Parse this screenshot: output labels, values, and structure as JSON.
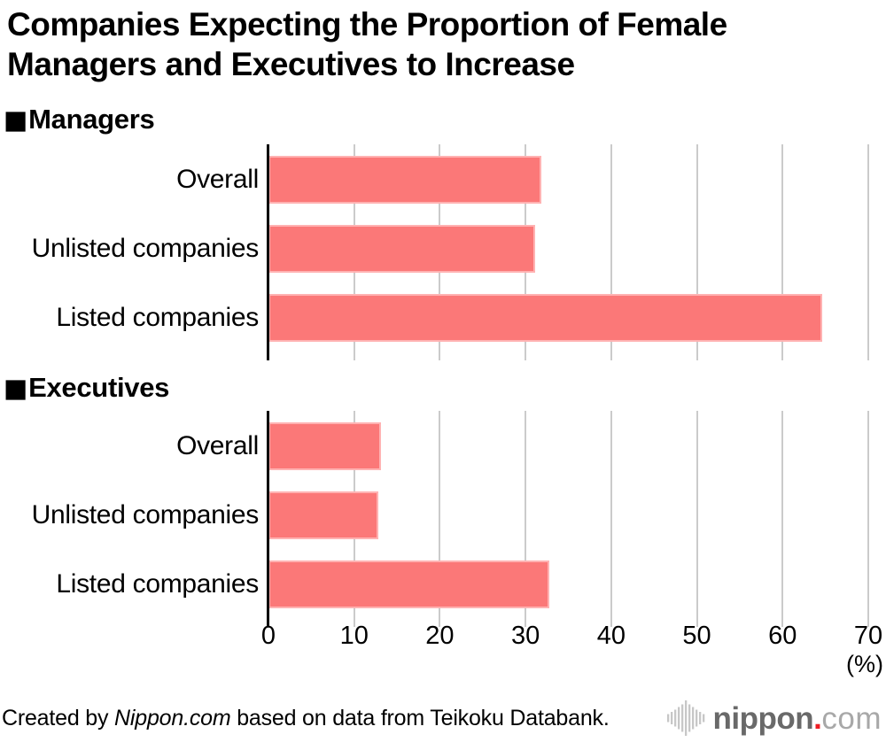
{
  "title_lines": [
    "Companies Expecting the Proportion of Female",
    "Managers and Executives to Increase"
  ],
  "section_marker": "■",
  "chart_data": {
    "type": "bar",
    "orientation": "horizontal",
    "title": "Companies Expecting the Proportion of Female Managers and Executives to Increase",
    "categories": [
      "Overall",
      "Unlisted companies",
      "Listed companies"
    ],
    "series": [
      {
        "name": "Managers",
        "values": [
          31.8,
          31.1,
          64.6
        ]
      },
      {
        "name": "Executives",
        "values": [
          13.1,
          12.8,
          32.8
        ]
      }
    ],
    "xlabel": "(%)",
    "ylabel": "",
    "xlim": [
      0,
      70
    ],
    "ticks": [
      0,
      10,
      20,
      30,
      40,
      50,
      60,
      70
    ],
    "grid": true,
    "legend_position": "none",
    "bar_color": "#fb7878",
    "grid_color": "#cbcbcb"
  },
  "axis_unit_label": "(%)",
  "footer": {
    "credit_prefix": "Created by ",
    "credit_source": "Nippon.com",
    "credit_suffix": " based on data from Teikoku Databank.",
    "logo_name": "nippon",
    "logo_dot": ".",
    "logo_tld": "com"
  }
}
